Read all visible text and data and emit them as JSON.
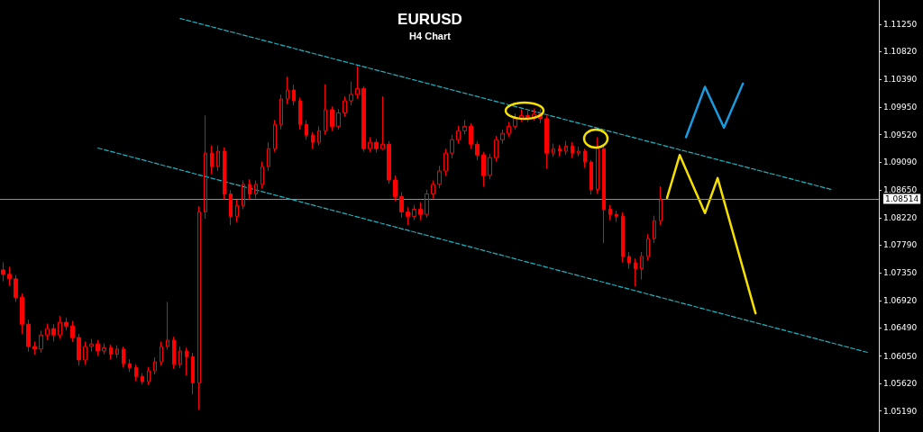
{
  "chart_data": {
    "type": "candlestick",
    "title": "EURUSD",
    "subtitle": "H4 Chart",
    "tick_labels": "y",
    "grid": false,
    "categories": [
      null,
      null,
      null,
      null,
      null,
      null,
      null,
      null,
      null,
      null,
      null,
      null,
      null,
      null,
      null,
      null,
      null,
      null,
      null,
      null,
      null,
      null,
      null,
      null,
      null,
      null,
      null,
      null,
      null,
      null,
      null,
      null,
      null,
      null,
      null,
      null,
      null,
      null,
      null,
      null,
      null,
      null,
      null,
      null,
      null,
      null,
      null,
      null,
      null,
      null,
      null,
      null,
      null,
      null,
      null,
      null,
      null,
      null,
      null,
      null,
      null,
      null,
      null,
      null,
      null,
      null,
      null,
      null,
      null,
      null,
      null,
      null,
      null,
      null,
      null,
      null,
      null,
      null,
      null,
      null,
      null,
      null,
      null,
      null,
      null,
      null,
      null,
      null,
      null,
      null,
      null,
      null,
      null,
      null,
      null,
      null,
      null,
      null,
      null,
      null,
      null,
      null,
      null,
      null,
      null,
      null,
      null,
      null,
      null,
      null,
      null,
      null,
      null,
      null,
      null,
      null,
      null,
      null,
      null,
      null,
      null,
      null,
      null,
      null,
      null,
      null,
      null,
      null,
      null,
      null,
      null,
      null,
      null,
      null,
      null,
      null,
      null,
      null,
      null
    ],
    "ylim": [
      1.0486,
      1.1163
    ],
    "yticks": [
      {
        "value": 1.1125,
        "label": "1.11250"
      },
      {
        "value": 1.1082,
        "label": "1.10820"
      },
      {
        "value": 1.1039,
        "label": "1.10390"
      },
      {
        "value": 1.0995,
        "label": "1.09950"
      },
      {
        "value": 1.0952,
        "label": "1.09520"
      },
      {
        "value": 1.0909,
        "label": "1.09090"
      },
      {
        "value": 1.0865,
        "label": "1.08650"
      },
      {
        "value": 1.0822,
        "label": "1.08220"
      },
      {
        "value": 1.0779,
        "label": "1.07790"
      },
      {
        "value": 1.0735,
        "label": "1.07350"
      },
      {
        "value": 1.0692,
        "label": "1.06920"
      },
      {
        "value": 1.0649,
        "label": "1.06490"
      },
      {
        "value": 1.0605,
        "label": "1.06050"
      },
      {
        "value": 1.0562,
        "label": "1.05620"
      },
      {
        "value": 1.0519,
        "label": "1.05190"
      }
    ],
    "ref_lines": [
      {
        "axis": "y",
        "value": 1.08514,
        "label": "1.08514",
        "color": "#8a8f99"
      }
    ],
    "series": [
      {
        "color": "#ff0000",
        "ohlc": [
          [
            1.074,
            1.0752,
            1.0722,
            1.0733
          ],
          [
            1.0733,
            1.0745,
            1.0715,
            1.0726
          ],
          [
            1.0726,
            1.0732,
            1.069,
            1.0697
          ],
          [
            1.0697,
            1.0703,
            1.064,
            1.0655
          ],
          [
            1.0655,
            1.0662,
            1.0612,
            1.062
          ],
          [
            1.062,
            1.0628,
            1.0607,
            1.0616
          ],
          [
            1.0616,
            1.0645,
            1.061,
            1.0638
          ],
          [
            1.0638,
            1.0656,
            1.063,
            1.0648
          ],
          [
            1.0648,
            1.0655,
            1.0628,
            1.0638
          ],
          [
            1.0638,
            1.0668,
            1.0632,
            1.0658
          ],
          [
            1.0658,
            1.0665,
            1.0645,
            1.0652
          ],
          [
            1.0652,
            1.066,
            1.0627,
            1.0634
          ],
          [
            1.0634,
            1.064,
            1.059,
            1.0599
          ],
          [
            1.0599,
            1.0628,
            1.0592,
            1.062
          ],
          [
            1.062,
            1.0632,
            1.0612,
            1.0624
          ],
          [
            1.0624,
            1.063,
            1.0606,
            1.0613
          ],
          [
            1.0613,
            1.0625,
            1.0608,
            1.0618
          ],
          [
            1.0618,
            1.0623,
            1.06,
            1.0608
          ],
          [
            1.0608,
            1.0622,
            1.0602,
            1.0616
          ],
          [
            1.0616,
            1.062,
            1.0587,
            1.0593
          ],
          [
            1.0593,
            1.06,
            1.058,
            1.0587
          ],
          [
            1.0587,
            1.0592,
            1.0566,
            1.0573
          ],
          [
            1.0573,
            1.0578,
            1.056,
            1.0565
          ],
          [
            1.0565,
            1.0588,
            1.056,
            1.0582
          ],
          [
            1.0582,
            1.0603,
            1.0576,
            1.0596
          ],
          [
            1.0596,
            1.0628,
            1.059,
            1.062
          ],
          [
            1.062,
            1.069,
            1.0615,
            1.063
          ],
          [
            1.063,
            1.0635,
            1.0585,
            1.0592
          ],
          [
            1.0592,
            1.062,
            1.0586,
            1.0613
          ],
          [
            1.0613,
            1.0618,
            1.0575,
            1.0604
          ],
          [
            1.0604,
            1.061,
            1.0545,
            1.0563
          ],
          [
            1.0563,
            1.084,
            1.0521,
            1.0831
          ],
          [
            1.0831,
            1.0982,
            1.082,
            1.0923
          ],
          [
            1.0923,
            1.0935,
            1.089,
            1.0902
          ],
          [
            1.0902,
            1.0935,
            1.0895,
            1.0926
          ],
          [
            1.0926,
            1.0932,
            1.085,
            1.0859
          ],
          [
            1.0859,
            1.0865,
            1.081,
            1.0824
          ],
          [
            1.0824,
            1.085,
            1.0815,
            1.0841
          ],
          [
            1.0841,
            1.088,
            1.0835,
            1.0874
          ],
          [
            1.0874,
            1.0882,
            1.085,
            1.0859
          ],
          [
            1.0859,
            1.088,
            1.0852,
            1.0874
          ],
          [
            1.0874,
            1.091,
            1.0868,
            1.0902
          ],
          [
            1.0902,
            1.094,
            1.0895,
            1.093
          ],
          [
            1.093,
            1.0975,
            1.0925,
            1.0968
          ],
          [
            1.0968,
            1.1015,
            1.096,
            1.1008
          ],
          [
            1.1008,
            1.1043,
            1.1,
            1.1022
          ],
          [
            1.1022,
            1.103,
            1.0998,
            1.1005
          ],
          [
            1.1005,
            1.101,
            1.096,
            1.0968
          ],
          [
            1.0968,
            1.0975,
            1.0944,
            1.0951
          ],
          [
            1.0951,
            1.0956,
            1.093,
            1.094
          ],
          [
            1.094,
            1.0965,
            1.0935,
            1.0958
          ],
          [
            1.0958,
            1.1031,
            1.0952,
            1.0991
          ],
          [
            1.0991,
            1.0996,
            1.0958,
            1.0965
          ],
          [
            1.0965,
            1.0992,
            1.096,
            1.0986
          ],
          [
            1.0986,
            1.1012,
            1.098,
            1.1005
          ],
          [
            1.1005,
            1.1035,
            1.0998,
            1.1015
          ],
          [
            1.1015,
            1.106,
            1.1008,
            1.1024
          ],
          [
            1.1024,
            1.1028,
            1.0925,
            1.093
          ],
          [
            1.093,
            1.0948,
            1.0925,
            1.094
          ],
          [
            1.094,
            1.0945,
            1.0924,
            1.093
          ],
          [
            1.093,
            1.1012,
            1.0928,
            1.0937
          ],
          [
            1.0937,
            1.0942,
            1.0875,
            1.0881
          ],
          [
            1.0881,
            1.0888,
            1.0848,
            1.0855
          ],
          [
            1.0855,
            1.0862,
            1.0822,
            1.0831
          ],
          [
            1.0831,
            1.0838,
            1.081,
            1.0824
          ],
          [
            1.0824,
            1.0842,
            1.0818,
            1.0835
          ],
          [
            1.0835,
            1.0846,
            1.0818,
            1.0827
          ],
          [
            1.0827,
            1.0866,
            1.0822,
            1.0859
          ],
          [
            1.0859,
            1.088,
            1.0852,
            1.0874
          ],
          [
            1.0874,
            1.0903,
            1.0868,
            1.0895
          ],
          [
            1.0895,
            1.093,
            1.0888,
            1.0923
          ],
          [
            1.0923,
            1.0952,
            1.0915,
            1.0944
          ],
          [
            1.0944,
            1.0966,
            1.0938,
            1.0958
          ],
          [
            1.0958,
            1.0975,
            1.0952,
            1.0965
          ],
          [
            1.0965,
            1.097,
            1.093,
            1.0937
          ],
          [
            1.0937,
            1.0942,
            1.0912,
            1.092
          ],
          [
            1.092,
            1.0925,
            1.0871,
            1.0888
          ],
          [
            1.0888,
            1.0922,
            1.0882,
            1.0916
          ],
          [
            1.0916,
            1.095,
            1.091,
            1.0944
          ],
          [
            1.0944,
            1.096,
            1.0938,
            1.0954
          ],
          [
            1.0954,
            1.0972,
            1.0948,
            1.0965
          ],
          [
            1.0965,
            1.0985,
            1.096,
            1.0977
          ],
          [
            1.0977,
            1.0992,
            1.0972,
            1.0982
          ],
          [
            1.0982,
            1.099,
            1.0972,
            1.0979
          ],
          [
            1.0979,
            1.0993,
            1.0974,
            1.0984
          ],
          [
            1.0984,
            1.0992,
            1.097,
            1.0977
          ],
          [
            1.0977,
            1.0982,
            1.0899,
            1.0923
          ],
          [
            1.0923,
            1.0938,
            1.0917,
            1.093
          ],
          [
            1.093,
            1.0936,
            1.0918,
            1.0926
          ],
          [
            1.0926,
            1.0942,
            1.092,
            1.0934
          ],
          [
            1.0934,
            1.094,
            1.0916,
            1.0923
          ],
          [
            1.0923,
            1.0933,
            1.0918,
            1.0926
          ],
          [
            1.0926,
            1.093,
            1.09,
            1.0909
          ],
          [
            1.0909,
            1.0912,
            1.0858,
            1.0866
          ],
          [
            1.0866,
            1.0948,
            1.086,
            1.093
          ],
          [
            1.093,
            1.0935,
            1.0782,
            1.0835
          ],
          [
            1.0835,
            1.0842,
            1.0818,
            1.0827
          ],
          [
            1.0827,
            1.0833,
            1.0815,
            1.0824
          ],
          [
            1.0824,
            1.083,
            1.0752,
            1.0761
          ],
          [
            1.0761,
            1.0768,
            1.0742,
            1.0751
          ],
          [
            1.0751,
            1.0758,
            1.0714,
            1.0742
          ],
          [
            1.0742,
            1.0768,
            1.0725,
            1.0761
          ],
          [
            1.0761,
            1.0796,
            1.0755,
            1.0789
          ],
          [
            1.0789,
            1.0825,
            1.0782,
            1.0817
          ],
          [
            1.0817,
            1.0871,
            1.081,
            1.085
          ],
          null,
          null,
          null,
          null,
          null,
          null,
          null,
          null,
          null,
          null,
          null,
          null,
          null,
          null,
          null,
          null,
          null,
          null,
          null,
          null,
          null,
          null,
          null,
          null,
          null,
          null,
          null,
          null,
          null,
          null,
          null,
          null,
          null,
          null
        ]
      },
      {
        "type": "line",
        "color": "#20b2bf",
        "line_style": "dashed",
        "values": [
          null,
          null,
          null,
          null,
          null,
          null,
          null,
          null,
          null,
          null,
          null,
          null,
          null,
          null,
          null,
          null,
          null,
          null,
          null,
          null,
          null,
          null,
          null,
          null,
          null,
          null,
          null,
          null,
          1.1134,
          null,
          null,
          null,
          null,
          null,
          null,
          null,
          null,
          null,
          null,
          null,
          null,
          null,
          null,
          null,
          null,
          null,
          null,
          null,
          null,
          null,
          null,
          null,
          null,
          null,
          null,
          null,
          null,
          null,
          null,
          null,
          null,
          null,
          null,
          null,
          null,
          null,
          null,
          null,
          null,
          null,
          null,
          null,
          null,
          null,
          null,
          null,
          null,
          null,
          null,
          null,
          null,
          null,
          null,
          null,
          null,
          null,
          null,
          null,
          null,
          null,
          null,
          null,
          null,
          null,
          null,
          null,
          null,
          null,
          null,
          null,
          null,
          null,
          null,
          null,
          null,
          null,
          null,
          null,
          null,
          null,
          null,
          null,
          null,
          null,
          null,
          null,
          null,
          null,
          null,
          null,
          null,
          null,
          null,
          null,
          null,
          null,
          null,
          null,
          null,
          null,
          null,
          1.0866,
          null,
          null,
          null,
          null,
          null,
          null,
          null
        ]
      },
      {
        "type": "line",
        "color": "#20b2bf",
        "line_style": "dashed",
        "values": [
          null,
          null,
          null,
          null,
          null,
          null,
          null,
          null,
          null,
          null,
          null,
          null,
          null,
          null,
          null,
          1.0931,
          null,
          null,
          null,
          null,
          null,
          null,
          null,
          null,
          null,
          null,
          null,
          null,
          null,
          null,
          null,
          null,
          null,
          null,
          null,
          null,
          null,
          null,
          null,
          null,
          null,
          null,
          null,
          null,
          null,
          null,
          null,
          null,
          null,
          null,
          null,
          null,
          null,
          null,
          null,
          null,
          null,
          null,
          null,
          null,
          null,
          null,
          null,
          null,
          null,
          null,
          null,
          null,
          null,
          null,
          null,
          null,
          null,
          null,
          null,
          null,
          null,
          null,
          null,
          null,
          null,
          null,
          null,
          null,
          null,
          null,
          null,
          null,
          null,
          null,
          null,
          null,
          null,
          null,
          null,
          null,
          null,
          null,
          null,
          null,
          null,
          null,
          null,
          null,
          null,
          null,
          null,
          null,
          null,
          null,
          null,
          null,
          null,
          null,
          null,
          null,
          null,
          null,
          null,
          null,
          null,
          null,
          null,
          null,
          null,
          null,
          null,
          null,
          null,
          null,
          null,
          null,
          null,
          null,
          null,
          null,
          null,
          1.061,
          null
        ]
      },
      {
        "type": "line",
        "color": "#f5e000",
        "line_style": "solid",
        "values": [
          null,
          null,
          null,
          null,
          null,
          null,
          null,
          null,
          null,
          null,
          null,
          null,
          null,
          null,
          null,
          null,
          null,
          null,
          null,
          null,
          null,
          null,
          null,
          null,
          null,
          null,
          null,
          null,
          null,
          null,
          null,
          null,
          null,
          null,
          null,
          null,
          null,
          null,
          null,
          null,
          null,
          null,
          null,
          null,
          null,
          null,
          null,
          null,
          null,
          null,
          null,
          null,
          null,
          null,
          null,
          null,
          null,
          null,
          null,
          null,
          null,
          null,
          null,
          null,
          null,
          null,
          null,
          null,
          null,
          null,
          null,
          null,
          null,
          null,
          null,
          null,
          null,
          null,
          null,
          null,
          null,
          null,
          null,
          null,
          null,
          null,
          null,
          null,
          null,
          null,
          null,
          null,
          null,
          null,
          null,
          null,
          null,
          null,
          null,
          null,
          null,
          null,
          null,
          null,
          null,
          1.0853,
          null,
          1.092,
          null,
          null,
          null,
          1.0829,
          null,
          1.0884,
          null,
          null,
          null,
          null,
          null,
          1.0672,
          null,
          null,
          null,
          null,
          null,
          null,
          null,
          null,
          null,
          null,
          null,
          null,
          null,
          null,
          null,
          null,
          null,
          null,
          null
        ]
      },
      {
        "type": "line",
        "color": "#1a9be0",
        "line_style": "solid",
        "values": [
          null,
          null,
          null,
          null,
          null,
          null,
          null,
          null,
          null,
          null,
          null,
          null,
          null,
          null,
          null,
          null,
          null,
          null,
          null,
          null,
          null,
          null,
          null,
          null,
          null,
          null,
          null,
          null,
          null,
          null,
          null,
          null,
          null,
          null,
          null,
          null,
          null,
          null,
          null,
          null,
          null,
          null,
          null,
          null,
          null,
          null,
          null,
          null,
          null,
          null,
          null,
          null,
          null,
          null,
          null,
          null,
          null,
          null,
          null,
          null,
          null,
          null,
          null,
          null,
          null,
          null,
          null,
          null,
          null,
          null,
          null,
          null,
          null,
          null,
          null,
          null,
          null,
          null,
          null,
          null,
          null,
          null,
          null,
          null,
          null,
          null,
          null,
          null,
          null,
          null,
          null,
          null,
          null,
          null,
          null,
          null,
          null,
          null,
          null,
          null,
          null,
          null,
          null,
          null,
          null,
          null,
          null,
          null,
          1.0948,
          null,
          null,
          1.1027,
          null,
          null,
          1.0963,
          null,
          null,
          1.1032,
          null,
          null,
          null,
          null,
          null,
          null,
          null,
          null,
          null,
          null,
          null,
          null,
          null,
          null,
          null,
          null,
          null,
          null,
          null,
          null,
          null
        ]
      }
    ]
  }
}
